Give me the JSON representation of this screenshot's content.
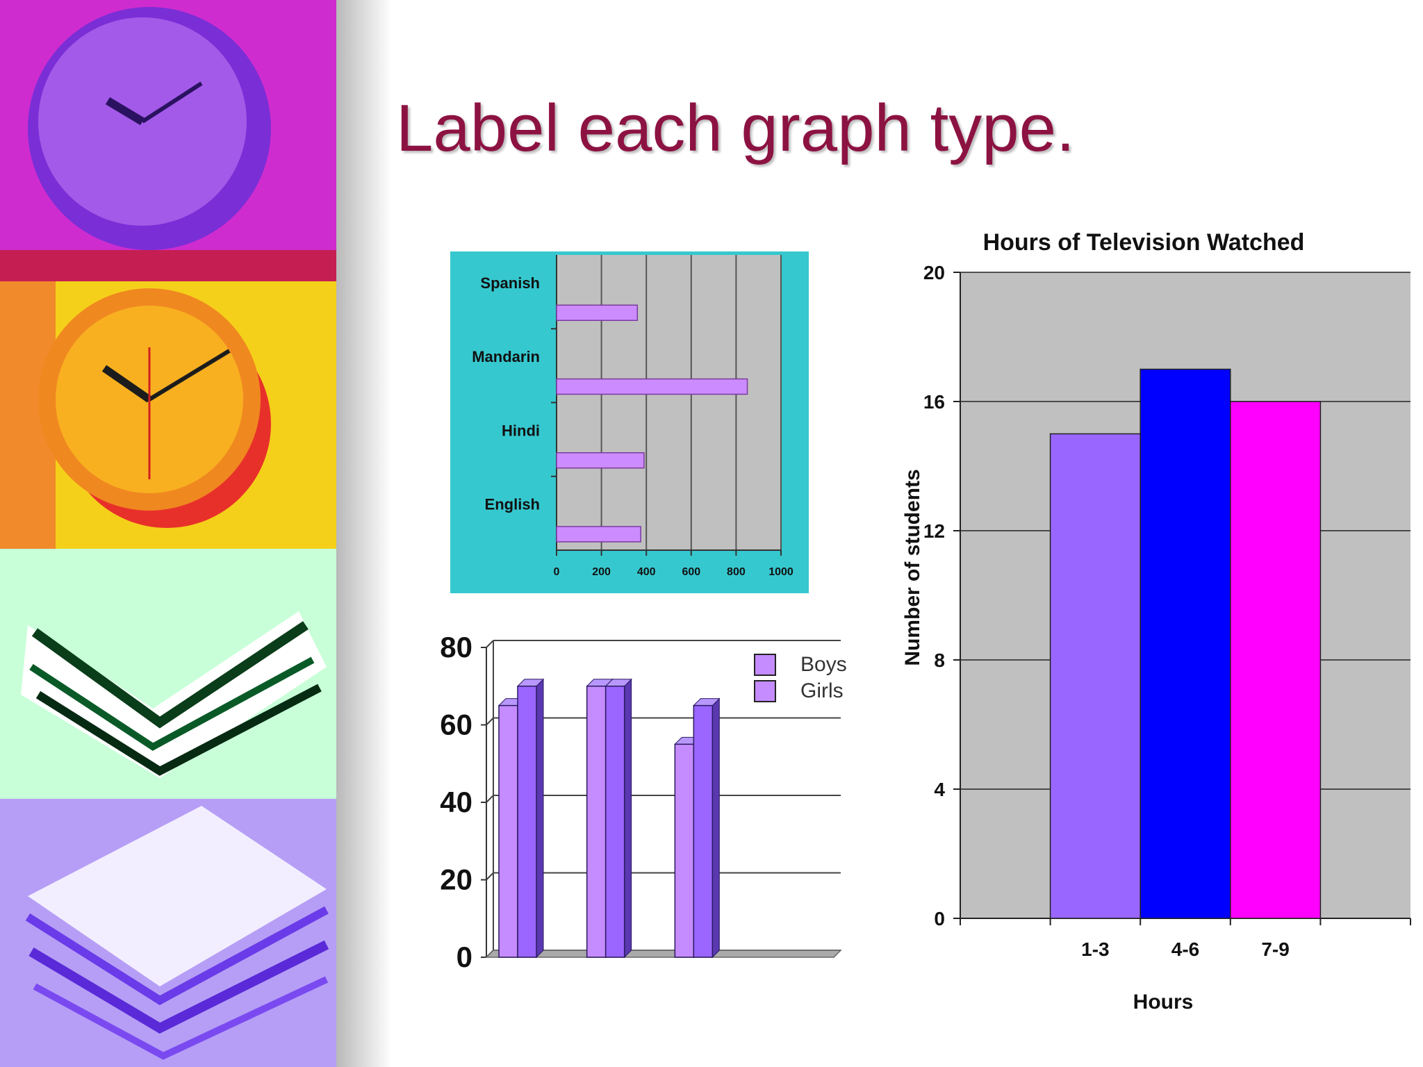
{
  "slide": {
    "title": "Label each graph type.",
    "title_color": "#8c1242"
  },
  "decor": {
    "panels": [
      "purple-wall-clock",
      "orange-wall-clock",
      "green-paper-stack",
      "violet-paper-stack"
    ],
    "colors": [
      "#d42bd8",
      "#f7d21b",
      "#b8ffcf",
      "#b49af5"
    ]
  },
  "chart_data": [
    {
      "type": "bar",
      "orientation": "horizontal",
      "title": "",
      "categories": [
        "Spanish",
        "Mandarin",
        "Hindi",
        "English"
      ],
      "values": [
        360,
        850,
        390,
        375
      ],
      "xlim": [
        0,
        1000
      ],
      "xticks": [
        "0",
        "200",
        "400",
        "600",
        "800",
        "1000"
      ],
      "grid": true,
      "colors": {
        "background": "#36c8cf",
        "plot": "#c0c0c0",
        "bar": "#cc8cff"
      }
    },
    {
      "type": "bar",
      "style": "3d-column",
      "title": "",
      "categories": [
        "",
        "",
        ""
      ],
      "series": [
        {
          "name": "Boys",
          "values": [
            65,
            70,
            55
          ]
        },
        {
          "name": "Girls",
          "values": [
            70,
            70,
            65
          ]
        }
      ],
      "ylim": [
        0,
        80
      ],
      "yticks": [
        "0",
        "20",
        "40",
        "60",
        "80"
      ],
      "grid": true,
      "legend": "top-right",
      "colors": {
        "Boys": "#c58cff",
        "Girls": "#9a66ff"
      }
    },
    {
      "type": "bar",
      "title": "Hours of Television Watched",
      "xlabel": "Hours",
      "ylabel": "Number of students",
      "categories": [
        "1-3",
        "4-6",
        "7-9"
      ],
      "values": [
        15,
        17,
        16
      ],
      "ylim": [
        0,
        20
      ],
      "yticks": [
        "0",
        "4",
        "8",
        "12",
        "16",
        "20"
      ],
      "grid": true,
      "colors": {
        "plot": "#c0c0c0",
        "bars": [
          "#9966ff",
          "#0000ff",
          "#ff00ff"
        ]
      }
    }
  ]
}
